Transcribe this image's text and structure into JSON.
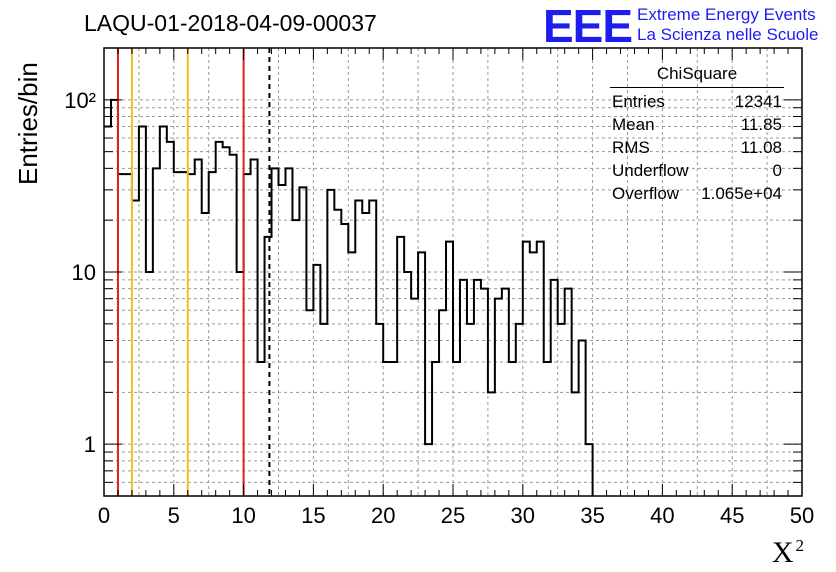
{
  "title": "LAQU-01-2018-04-09-00037",
  "logo": {
    "mark": "EEE",
    "line1": "Extreme Energy Events",
    "line2": "La Scienza nelle Scuole",
    "color": "#1d1df0"
  },
  "stats": {
    "name": "ChiSquare",
    "rows": [
      {
        "label": "Entries",
        "value": "12341"
      },
      {
        "label": "Mean",
        "value": "11.85"
      },
      {
        "label": "RMS",
        "value": "11.08"
      },
      {
        "label": "Underflow",
        "value": "0"
      },
      {
        "label": "Overflow",
        "value": "1.065e+04"
      }
    ]
  },
  "chart_data": {
    "type": "histogram",
    "xlabel": "X",
    "xlabel_superscript": "2",
    "ylabel": "Entries/bin",
    "xlim": [
      0,
      50
    ],
    "ylim": [
      0.5,
      200
    ],
    "yscale": "log",
    "bin_width": 0.5,
    "xticks": [
      "0",
      "5",
      "10",
      "15",
      "20",
      "25",
      "30",
      "35",
      "40",
      "45",
      "50"
    ],
    "yticks": [
      {
        "value": 1,
        "label": "1"
      },
      {
        "value": 10,
        "label": "10"
      },
      {
        "value": 100,
        "label": "10²"
      }
    ],
    "grid": true,
    "values": [
      70,
      100,
      37,
      37,
      26,
      70,
      10,
      40,
      70,
      57,
      38,
      38,
      37,
      45,
      22,
      38,
      57,
      53,
      48,
      10,
      37,
      45,
      3,
      16,
      40,
      32,
      40,
      20,
      31,
      6,
      11,
      5,
      30,
      23,
      19,
      13,
      26,
      22,
      26,
      5,
      3,
      3,
      16,
      10,
      7,
      13,
      1,
      3,
      6,
      15,
      3,
      9,
      5,
      9,
      8,
      2,
      7,
      8,
      3,
      5,
      15,
      13,
      15,
      3,
      9,
      5,
      8,
      2,
      4,
      1,
      0,
      0,
      0,
      0,
      0,
      0,
      0,
      0,
      0,
      0,
      0,
      0,
      0,
      0,
      0,
      0,
      0,
      0,
      0,
      0,
      0,
      0,
      0,
      0,
      0,
      0,
      0,
      0,
      0,
      0
    ],
    "vlines": [
      {
        "x": 1,
        "color": "#e0201c",
        "style": "solid"
      },
      {
        "x": 2,
        "color": "#f0c020",
        "style": "solid"
      },
      {
        "x": 6,
        "color": "#f0c020",
        "style": "solid"
      },
      {
        "x": 10,
        "color": "#e0201c",
        "style": "solid"
      },
      {
        "x": 11.85,
        "color": "#000000",
        "style": "dashed"
      }
    ]
  }
}
